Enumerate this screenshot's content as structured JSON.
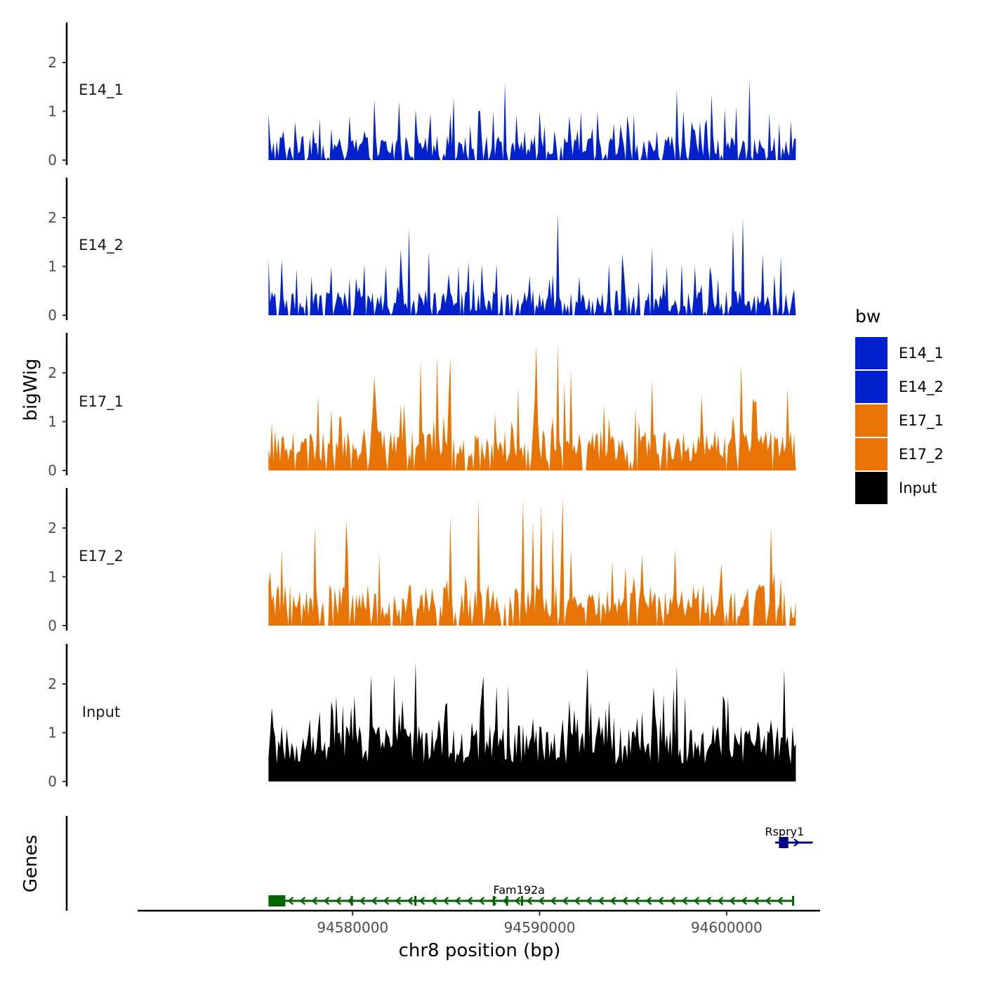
{
  "chart_data": {
    "type": "area",
    "title": "",
    "ylabel": "bigWig",
    "xlabel": "chr8 position (bp)",
    "genes_label": "Genes",
    "xlim": [
      94568500,
      94605000
    ],
    "x_range_data": [
      94575500,
      94603700
    ],
    "x_ticks": [
      94580000,
      94590000,
      94600000
    ],
    "x_tick_labels": [
      "94580000",
      "94590000",
      "94600000"
    ],
    "ylim": [
      0,
      2.8
    ],
    "y_ticks": [
      0,
      1,
      2
    ],
    "y_tick_labels": [
      "0",
      "1",
      "2"
    ],
    "legend": {
      "title": "bw",
      "position": "right",
      "entries": [
        {
          "label": "E14_1",
          "color": "#0021CC"
        },
        {
          "label": "E14_2",
          "color": "#0021CC"
        },
        {
          "label": "E17_1",
          "color": "#E87405"
        },
        {
          "label": "E17_2",
          "color": "#E87405"
        },
        {
          "label": "Input",
          "color": "#000000"
        }
      ]
    },
    "series": [
      {
        "name": "E14_1",
        "color": "#0021CC",
        "peaks": [
          [
            94575500,
            0.95
          ],
          [
            94576300,
            0.6
          ],
          [
            94577400,
            0.5
          ],
          [
            94578200,
            0.85
          ],
          [
            94578900,
            0.65
          ],
          [
            94579800,
            0.9
          ],
          [
            94580600,
            0.6
          ],
          [
            94581200,
            1.25
          ],
          [
            94582500,
            1.2
          ],
          [
            94583400,
            0.7
          ],
          [
            94584200,
            0.95
          ],
          [
            94585400,
            1.3
          ],
          [
            94586700,
            1.0
          ],
          [
            94587500,
            1.0
          ],
          [
            94588100,
            1.6
          ],
          [
            94589200,
            0.6
          ],
          [
            94590000,
            1.0
          ],
          [
            94590800,
            0.6
          ],
          [
            94591600,
            0.9
          ],
          [
            94592200,
            1.0
          ],
          [
            94593100,
            1.0
          ],
          [
            94594000,
            0.4
          ],
          [
            94594700,
            0.9
          ],
          [
            94595600,
            0.4
          ],
          [
            94597300,
            1.45
          ],
          [
            94598300,
            0.6
          ],
          [
            94599200,
            1.35
          ],
          [
            94599900,
            1.05
          ],
          [
            94600500,
            1.1
          ],
          [
            94601200,
            1.65
          ],
          [
            94602300,
            0.95
          ],
          [
            94603400,
            0.8
          ]
        ]
      },
      {
        "name": "E14_2",
        "color": "#0021CC",
        "peaks": [
          [
            94575500,
            1.15
          ],
          [
            94576200,
            1.15
          ],
          [
            94577000,
            0.95
          ],
          [
            94577800,
            0.8
          ],
          [
            94578900,
            1.0
          ],
          [
            94579800,
            0.75
          ],
          [
            94580600,
            1.05
          ],
          [
            94581800,
            1.0
          ],
          [
            94582600,
            1.35
          ],
          [
            94583000,
            1.8
          ],
          [
            94584100,
            1.3
          ],
          [
            94585100,
            0.85
          ],
          [
            94585700,
            1.0
          ],
          [
            94586200,
            1.1
          ],
          [
            94586900,
            1.05
          ],
          [
            94587700,
            1.05
          ],
          [
            94589500,
            0.8
          ],
          [
            94590500,
            0.75
          ],
          [
            94591000,
            2.1
          ],
          [
            94592100,
            0.8
          ],
          [
            94593700,
            1.05
          ],
          [
            94594400,
            1.25
          ],
          [
            94595300,
            0.7
          ],
          [
            94596000,
            1.4
          ],
          [
            94596800,
            1.0
          ],
          [
            94597600,
            1.05
          ],
          [
            94598300,
            1.0
          ],
          [
            94599100,
            1.0
          ],
          [
            94600300,
            1.75
          ],
          [
            94600900,
            2.0
          ],
          [
            94601900,
            1.25
          ],
          [
            94602900,
            1.2
          ]
        ]
      },
      {
        "name": "E17_1",
        "color": "#E87405"
      },
      {
        "name": "E17_2",
        "color": "#E87405"
      },
      {
        "name": "Input",
        "color": "#000000"
      }
    ],
    "genes": [
      {
        "name": "Fam192a",
        "start": 94575500,
        "end": 94603600,
        "strand": "-",
        "color": "#006400",
        "label_pos": 94588900,
        "exons": [
          [
            94575500,
            94576400
          ],
          [
            94579900,
            94579950
          ],
          [
            94583300,
            94583400
          ],
          [
            94587500,
            94587600
          ],
          [
            94588200,
            94588300
          ],
          [
            94589000,
            94589100
          ],
          [
            94603500,
            94603600
          ]
        ]
      },
      {
        "name": "Rspry1",
        "start": 94602600,
        "end": 94604600,
        "strand": "+",
        "color": "#00008B",
        "label_pos": 94603100,
        "exons": [
          [
            94602800,
            94603300
          ]
        ]
      }
    ]
  }
}
